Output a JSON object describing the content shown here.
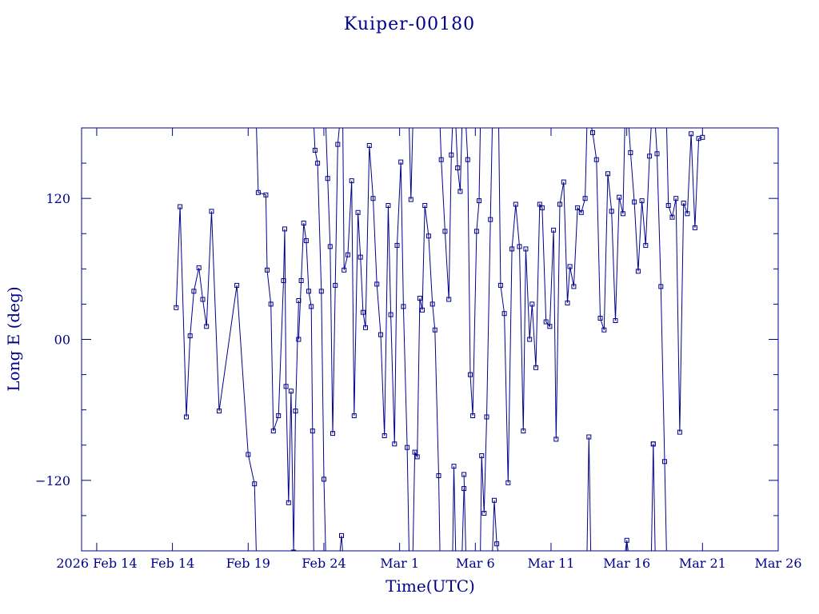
{
  "chart_data": {
    "type": "line",
    "title": "Kuiper-00180",
    "xlabel": "Time(UTC)",
    "ylabel": "Long E (deg)",
    "x_range_days": [
      "2026-02-08",
      "2026-03-26"
    ],
    "ylim": [
      -180,
      180
    ],
    "x_ticks": [
      {
        "date": "2026-02-09",
        "label": "2026 Feb 14"
      },
      {
        "date": "2026-02-14",
        "label": "Feb 14"
      },
      {
        "date": "2026-02-19",
        "label": "Feb 19"
      },
      {
        "date": "2026-02-24",
        "label": "Feb 24"
      },
      {
        "date": "2026-03-01",
        "label": "Mar  1"
      },
      {
        "date": "2026-03-06",
        "label": "Mar  6"
      },
      {
        "date": "2026-03-11",
        "label": "Mar 11"
      },
      {
        "date": "2026-03-16",
        "label": "Mar 16"
      },
      {
        "date": "2026-03-21",
        "label": "Mar 21"
      },
      {
        "date": "2026-03-26",
        "label": "Mar 26"
      }
    ],
    "y_ticks": [
      {
        "value": 120,
        "label": "120"
      },
      {
        "value": 0,
        "label": "00"
      },
      {
        "value": -120,
        "label": "−120"
      }
    ],
    "marker": "square",
    "grid": false,
    "color": "#00008b",
    "series": [
      {
        "x": [
          "2026-02-14T06:00",
          "2026-02-14T12:00",
          "2026-02-14T22:00",
          "2026-02-15T04:00",
          "2026-02-15T10:00",
          "2026-02-15T18:00",
          "2026-02-16T00:00",
          "2026-02-16T06:00",
          "2026-02-16T14:00",
          "2026-02-17T02:00",
          "2026-02-18T06:00",
          "2026-02-19T00:00",
          "2026-02-19T10:00",
          "2026-02-19T16:00",
          "2026-02-20T04:00",
          "2026-02-20T06:00",
          "2026-02-20T12:00",
          "2026-02-20T16:00",
          "2026-02-21T00:00",
          "2026-02-21T08:00",
          "2026-02-21T10:00",
          "2026-02-21T12:00",
          "2026-02-21T16:00",
          "2026-02-21T20:00",
          "2026-02-22T00:00",
          "2026-02-22T03:00",
          "2026-02-22T08:00"
        ],
        "y": [
          27,
          113,
          -66,
          3,
          41,
          61,
          34,
          11,
          109,
          -61,
          46,
          -98,
          -123,
          125,
          123,
          59,
          30,
          -78,
          -65,
          50,
          94,
          -40,
          -139,
          -44,
          -181,
          -61,
          33
        ]
      },
      {
        "x": [
          "2026-02-22T08:00",
          "2026-02-22T12:00",
          "2026-02-22T16:00",
          "2026-02-22T20:00",
          "2026-02-23T00:00",
          "2026-02-23T04:00",
          "2026-02-23T06:00",
          "2026-02-23T10:00",
          "2026-02-23T14:00",
          "2026-02-23T20:00",
          "2026-02-24T00:00",
          "2026-02-24T06:00",
          "2026-02-24T10:00",
          "2026-02-24T14:00",
          "2026-02-24T18:00",
          "2026-02-24T22:00",
          "2026-02-25T04:00",
          "2026-02-25T08:00",
          "2026-02-25T14:00",
          "2026-02-25T20:00",
          "2026-02-26T00:00",
          "2026-02-26T06:00",
          "2026-02-26T10:00",
          "2026-02-26T14:00",
          "2026-02-26T18:00",
          "2026-02-27T00:00",
          "2026-02-27T06:00",
          "2026-02-27T12:00",
          "2026-02-27T18:00",
          "2026-02-28T00:00",
          "2026-02-28T06:00",
          "2026-02-28T10:00",
          "2026-02-28T16:00",
          "2026-02-28T20:00",
          "2026-03-01T02:00",
          "2026-03-01T06:00",
          "2026-03-01T12:00",
          "2026-03-01T18:00",
          "2026-03-02T00:00",
          "2026-03-02T04:00",
          "2026-03-02T08:00",
          "2026-03-02T12:00",
          "2026-03-02T16:00",
          "2026-03-02T22:00",
          "2026-03-03T04:00",
          "2026-03-03T08:00",
          "2026-03-03T14:00",
          "2026-03-03T18:00",
          "2026-03-04T00:00",
          "2026-03-04T06:00",
          "2026-03-04T10:00",
          "2026-03-04T14:00",
          "2026-03-04T20:00",
          "2026-03-05T00:00",
          "2026-03-05T06:00"
        ],
        "y": [
          0,
          50,
          99,
          84,
          41,
          28,
          -78,
          161,
          150,
          41,
          -119,
          137,
          79,
          -80,
          46,
          166,
          -167,
          59,
          72,
          135,
          -65,
          108,
          70,
          23,
          10,
          165,
          120,
          47,
          4,
          -82,
          114,
          21,
          -89,
          80,
          151,
          28,
          -92,
          119,
          -96,
          -100,
          35,
          25,
          114,
          88,
          30,
          8,
          -116,
          153,
          92,
          34,
          157,
          -108,
          146,
          126,
          -127
        ]
      },
      {
        "x": [
          "2026-03-05T06:00",
          "2026-03-05T12:00",
          "2026-03-05T16:00",
          "2026-03-05T20:00",
          "2026-03-06T02:00",
          "2026-03-06T06:00",
          "2026-03-06T10:00",
          "2026-03-06T14:00",
          "2026-03-06T18:00",
          "2026-03-07T00:00",
          "2026-03-07T06:00",
          "2026-03-07T10:00",
          "2026-03-07T16:00",
          "2026-03-07T22:00",
          "2026-03-08T04:00",
          "2026-03-08T10:00",
          "2026-03-08T16:00",
          "2026-03-08T22:00",
          "2026-03-09T04:00",
          "2026-03-09T08:00",
          "2026-03-09T14:00",
          "2026-03-09T18:00",
          "2026-03-10T00:00",
          "2026-03-10T06:00",
          "2026-03-10T10:00",
          "2026-03-10T16:00",
          "2026-03-10T22:00",
          "2026-03-11T04:00",
          "2026-03-11T08:00",
          "2026-03-11T14:00",
          "2026-03-11T20:00",
          "2026-03-12T02:00",
          "2026-03-12T06:00",
          "2026-03-12T12:00",
          "2026-03-12T18:00",
          "2026-03-13T00:00",
          "2026-03-13T06:00",
          "2026-03-13T12:00",
          "2026-03-13T18:00",
          "2026-03-14T00:00",
          "2026-03-14T06:00",
          "2026-03-14T12:00",
          "2026-03-14T18:00",
          "2026-03-15T00:00",
          "2026-03-15T06:00",
          "2026-03-15T12:00",
          "2026-03-15T18:00",
          "2026-03-16T00:00",
          "2026-03-16T06:00",
          "2026-03-16T12:00",
          "2026-03-16T18:00",
          "2026-03-17T00:00",
          "2026-03-17T06:00",
          "2026-03-17T12:00",
          "2026-03-17T18:00"
        ],
        "y": [
          -115,
          153,
          -30,
          -65,
          92,
          118,
          -99,
          -148,
          -66,
          102,
          -137,
          -174,
          46,
          22,
          -122,
          77,
          115,
          79,
          -78,
          77,
          0,
          30,
          -24,
          115,
          112,
          15,
          11,
          93,
          -85,
          115,
          134,
          31,
          62,
          45,
          112,
          108,
          120,
          -83,
          176,
          153,
          18,
          8,
          141,
          109,
          16,
          121,
          107,
          -171,
          159,
          117,
          58,
          118,
          80,
          156,
          -89
        ]
      },
      {
        "x": [
          "2026-03-17T18:00",
          "2026-03-18T00:00",
          "2026-03-18T06:00",
          "2026-03-18T12:00",
          "2026-03-18T18:00",
          "2026-03-19T00:00",
          "2026-03-19T06:00",
          "2026-03-19T12:00",
          "2026-03-19T18:00",
          "2026-03-20T00:00",
          "2026-03-20T06:00",
          "2026-03-20T12:00",
          "2026-03-20T18:00",
          "2026-03-21T00:00"
        ],
        "y": [
          -89,
          158,
          45,
          -104,
          114,
          104,
          120,
          -79,
          116,
          107,
          175,
          95,
          171,
          172
        ]
      }
    ]
  }
}
